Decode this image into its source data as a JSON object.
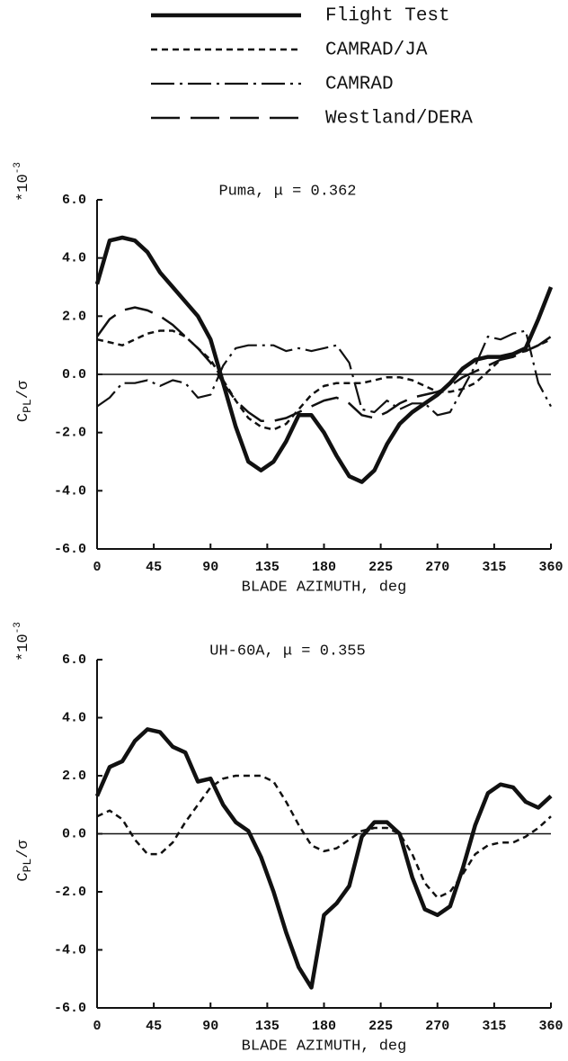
{
  "chart_data": [
    {
      "type": "line",
      "title": "Puma, μ = 0.362",
      "xlabel": "BLADE AZIMUTH, deg",
      "ylabel": "C",
      "ylabel_sub": "PL",
      "ylabel_tail": "/σ",
      "y_multiplier": "*10",
      "y_multiplier_exp": "-3",
      "xlim": [
        0,
        360
      ],
      "xticks": [
        0,
        45,
        90,
        135,
        180,
        225,
        270,
        315,
        360
      ],
      "ylim": [
        -6,
        6
      ],
      "yticks": [
        {
          "value": -6,
          "label": "-6.0"
        },
        {
          "value": -4,
          "label": "-4.0"
        },
        {
          "value": -2,
          "label": "-2.0"
        },
        {
          "value": 0,
          "label": "0.0"
        },
        {
          "value": 2,
          "label": "2.0"
        },
        {
          "value": 4,
          "label": "4.0"
        },
        {
          "value": 6,
          "label": "6.0"
        }
      ],
      "zero_line": true,
      "x": [
        0,
        10,
        20,
        30,
        40,
        50,
        60,
        70,
        80,
        90,
        100,
        110,
        120,
        130,
        140,
        150,
        160,
        170,
        180,
        190,
        200,
        210,
        220,
        230,
        240,
        250,
        260,
        270,
        280,
        290,
        300,
        310,
        320,
        330,
        340,
        350,
        360
      ],
      "series": [
        {
          "name": "Flight Test",
          "color": "#111111",
          "dash": "solid",
          "values": [
            3.1,
            4.6,
            4.7,
            4.6,
            4.2,
            3.5,
            3.0,
            2.5,
            2.0,
            1.2,
            -0.3,
            -1.8,
            -3.0,
            -3.3,
            -3.0,
            -2.3,
            -1.4,
            -1.4,
            -2.0,
            -2.8,
            -3.5,
            -3.7,
            -3.3,
            -2.4,
            -1.7,
            -1.3,
            -1.0,
            -0.7,
            -0.3,
            0.2,
            0.5,
            0.6,
            0.6,
            0.7,
            0.9,
            1.9,
            3.0
          ]
        },
        {
          "name": "CAMRAD/JA",
          "color": "#111111",
          "dash": "dashed",
          "values": [
            1.2,
            1.1,
            1.0,
            1.2,
            1.4,
            1.5,
            1.5,
            1.3,
            0.9,
            0.5,
            -0.2,
            -0.9,
            -1.5,
            -1.8,
            -1.9,
            -1.7,
            -1.2,
            -0.7,
            -0.4,
            -0.3,
            -0.3,
            -0.3,
            -0.2,
            -0.1,
            -0.1,
            -0.2,
            -0.4,
            -0.6,
            -0.6,
            -0.5,
            -0.3,
            0.1,
            0.5,
            0.7,
            0.8,
            1.0,
            1.2
          ]
        },
        {
          "name": "CAMRAD",
          "color": "#111111",
          "dash": "dashdot",
          "values": [
            -1.1,
            -0.8,
            -0.3,
            -0.3,
            -0.2,
            -0.4,
            -0.2,
            -0.3,
            -0.8,
            -0.7,
            0.3,
            0.9,
            1.0,
            1.0,
            1.0,
            0.8,
            0.9,
            0.8,
            0.9,
            1.0,
            0.4,
            -1.2,
            -1.3,
            -0.9,
            -1.2,
            -1.0,
            -1.0,
            -1.4,
            -1.3,
            -0.5,
            0.3,
            1.3,
            1.2,
            1.4,
            1.5,
            -0.3,
            -1.1
          ]
        },
        {
          "name": "Westland/DERA",
          "color": "#111111",
          "dash": "longdash",
          "values": [
            1.3,
            1.9,
            2.2,
            2.3,
            2.2,
            2.0,
            1.7,
            1.3,
            0.9,
            0.4,
            -0.3,
            -0.9,
            -1.3,
            -1.6,
            -1.6,
            -1.5,
            -1.3,
            -1.1,
            -0.9,
            -0.8,
            -1.0,
            -1.4,
            -1.5,
            -1.3,
            -1.0,
            -0.8,
            -0.7,
            -0.6,
            -0.4,
            -0.1,
            0.1,
            0.3,
            0.5,
            0.6,
            0.8,
            1.0,
            1.3
          ]
        }
      ]
    },
    {
      "type": "line",
      "title": "UH-60A, μ = 0.355",
      "xlabel": "BLADE AZIMUTH, deg",
      "ylabel": "C",
      "ylabel_sub": "PL",
      "ylabel_tail": "/σ",
      "y_multiplier": "*10",
      "y_multiplier_exp": "-3",
      "xlim": [
        0,
        360
      ],
      "xticks": [
        0,
        45,
        90,
        135,
        180,
        225,
        270,
        315,
        360
      ],
      "ylim": [
        -6,
        6
      ],
      "yticks": [
        {
          "value": -6,
          "label": "-6.0"
        },
        {
          "value": -4,
          "label": "-4.0"
        },
        {
          "value": -2,
          "label": "-2.0"
        },
        {
          "value": 0,
          "label": "0.0"
        },
        {
          "value": 2,
          "label": "2.0"
        },
        {
          "value": 4,
          "label": "4.0"
        },
        {
          "value": 6,
          "label": "6.0"
        }
      ],
      "zero_line": true,
      "x": [
        0,
        10,
        20,
        30,
        40,
        50,
        60,
        70,
        80,
        90,
        100,
        110,
        120,
        130,
        140,
        150,
        160,
        170,
        180,
        190,
        200,
        210,
        220,
        230,
        240,
        250,
        260,
        270,
        280,
        290,
        300,
        310,
        320,
        330,
        340,
        350,
        360
      ],
      "series": [
        {
          "color": "#111111",
          "dash": "solid",
          "values": [
            1.3,
            2.3,
            2.5,
            3.2,
            3.6,
            3.5,
            3.0,
            2.8,
            1.8,
            1.9,
            1.0,
            0.4,
            0.1,
            -0.8,
            -2.0,
            -3.4,
            -4.6,
            -5.3,
            -2.8,
            -2.4,
            -1.8,
            -0.1,
            0.4,
            0.4,
            0.0,
            -1.5,
            -2.6,
            -2.8,
            -2.5,
            -1.2,
            0.3,
            1.4,
            1.7,
            1.6,
            1.1,
            0.9,
            1.3
          ]
        },
        {
          "color": "#111111",
          "dash": "dashed",
          "values": [
            0.6,
            0.8,
            0.5,
            -0.2,
            -0.7,
            -0.7,
            -0.3,
            0.4,
            1.0,
            1.6,
            1.9,
            2.0,
            2.0,
            2.0,
            1.8,
            1.1,
            0.3,
            -0.4,
            -0.6,
            -0.5,
            -0.2,
            0.1,
            0.2,
            0.2,
            0.0,
            -0.7,
            -1.7,
            -2.2,
            -2.0,
            -1.4,
            -0.7,
            -0.4,
            -0.3,
            -0.3,
            -0.1,
            0.2,
            0.6
          ]
        }
      ]
    }
  ]
}
